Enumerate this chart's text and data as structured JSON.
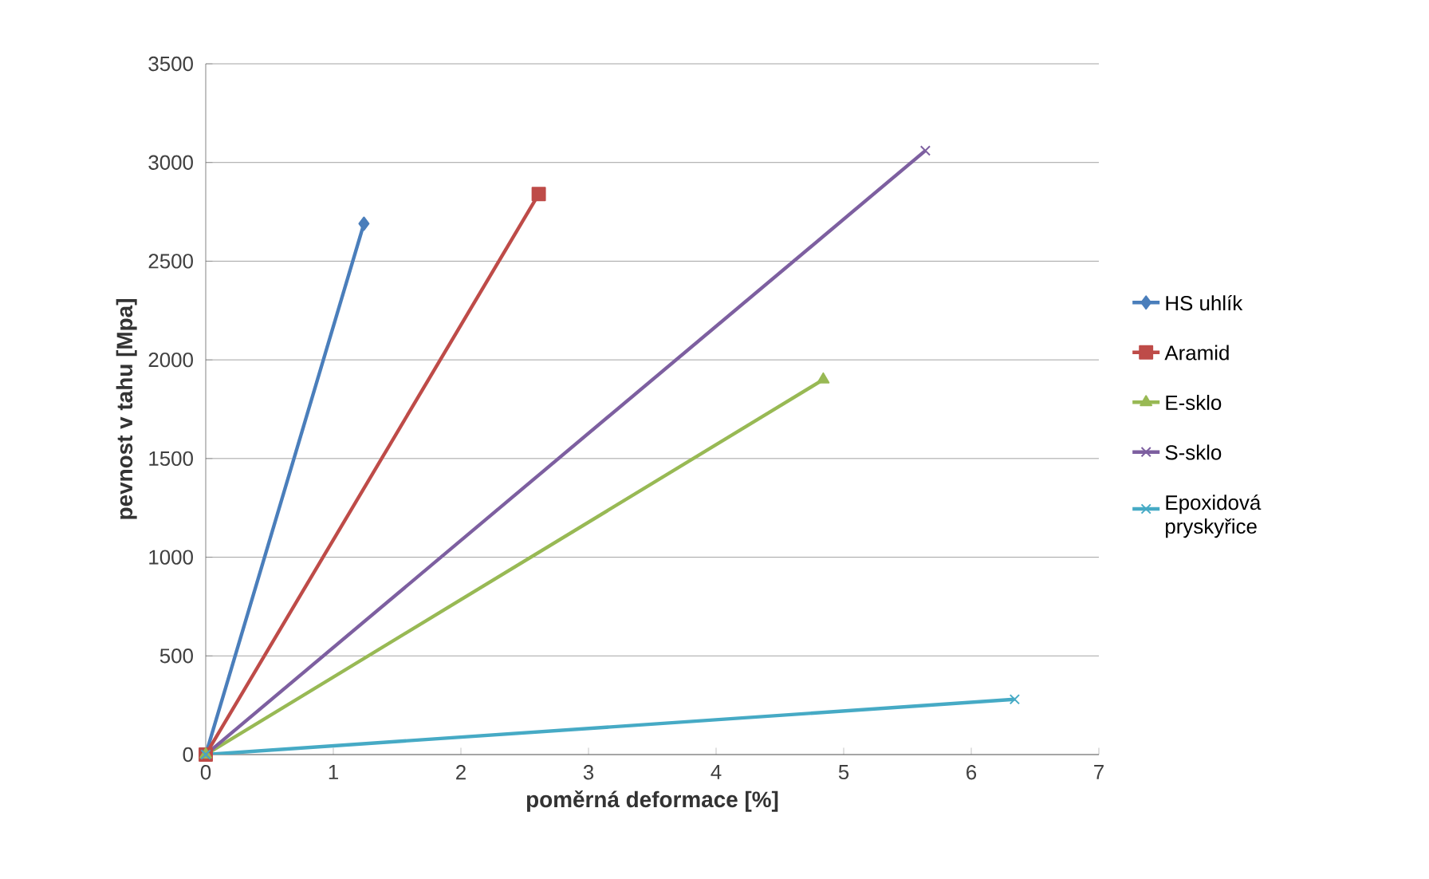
{
  "chart_data": {
    "type": "line",
    "xlabel": "poměrná deformace [%]",
    "ylabel": "pevnost v tahu [Mpa]",
    "xlim": [
      0,
      7
    ],
    "ylim": [
      0,
      3500
    ],
    "xticks": [
      0,
      1,
      2,
      3,
      4,
      5,
      6,
      7
    ],
    "yticks": [
      0,
      500,
      1000,
      1500,
      2000,
      2500,
      3000,
      3500
    ],
    "grid": "y",
    "legend": "right",
    "series": [
      {
        "name": "HS uhlík",
        "color": "#4a7ebb",
        "marker": "diamond",
        "x": [
          0,
          1.24
        ],
        "values": [
          0,
          2690
        ]
      },
      {
        "name": "Aramid",
        "color": "#be4b48",
        "marker": "square",
        "x": [
          0,
          2.61
        ],
        "values": [
          0,
          2840
        ]
      },
      {
        "name": "E-sklo",
        "color": "#98b954",
        "marker": "triangle",
        "x": [
          0,
          4.84
        ],
        "values": [
          0,
          1900
        ]
      },
      {
        "name": "S-sklo",
        "color": "#7d5fa0",
        "marker": "cross",
        "x": [
          0,
          5.64
        ],
        "values": [
          0,
          3060
        ]
      },
      {
        "name": "Epoxidová pryskyřice",
        "color": "#46aac5",
        "marker": "cross",
        "x": [
          0,
          6.34
        ],
        "values": [
          0,
          280
        ]
      }
    ]
  }
}
